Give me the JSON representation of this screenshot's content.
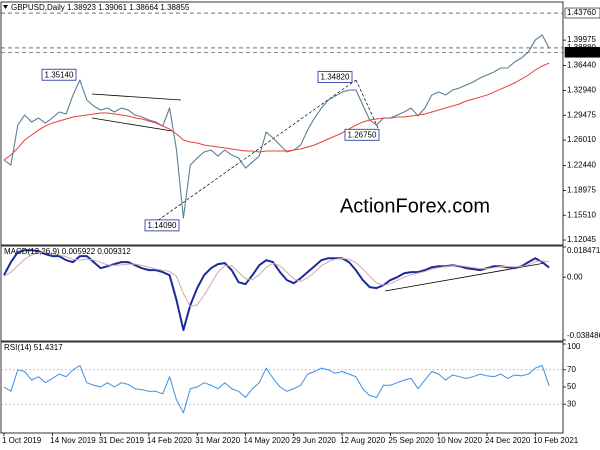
{
  "chart_data": [
    {
      "type": "line",
      "title": "GBPUSD,Daily 1.38923 1.39061 1.38664 1.38855",
      "watermark": "ActionForex.com",
      "series": [
        {
          "color": "#5b7f95",
          "values": [
            1.2322,
            1.2252,
            1.2811,
            1.2951,
            1.2853,
            1.2909,
            1.2839,
            1.2909,
            1.2993,
            1.2965,
            1.323,
            1.344,
            1.3161,
            1.3077,
            1.3021,
            1.3049,
            1.2993,
            1.3049,
            1.3021,
            1.2951,
            1.2923,
            1.2881,
            1.2853,
            1.2797,
            1.3049,
            1.2462,
            1.1512,
            1.2252,
            1.235,
            1.2434,
            1.2462,
            1.2378,
            1.2462,
            1.2392,
            1.235,
            1.221,
            1.2294,
            1.2378,
            1.2713,
            1.263,
            1.2532,
            1.2434,
            1.2462,
            1.2532,
            1.2741,
            1.2909,
            1.3049,
            1.3161,
            1.3216,
            1.3272,
            1.33,
            1.33,
            1.3091,
            1.2881,
            1.2811,
            1.2909,
            1.2909,
            1.2951,
            1.2993,
            1.3049,
            1.2937,
            1.3049,
            1.323,
            1.3272,
            1.323,
            1.33,
            1.3328,
            1.337,
            1.3412,
            1.3468,
            1.351,
            1.3552,
            1.3608,
            1.3608,
            1.3692,
            1.3748,
            1.3832,
            1.4,
            1.4069,
            1.3886
          ]
        },
        {
          "color": "#e8403a",
          "values": [
            1.2322,
            1.2392,
            1.249,
            1.2602,
            1.2672,
            1.2741,
            1.2797,
            1.2839,
            1.2867,
            1.2895,
            1.2923,
            1.2937,
            1.2951,
            1.2965,
            1.2979,
            1.2979,
            1.2965,
            1.2951,
            1.2937,
            1.2909,
            1.2895,
            1.2867,
            1.2839,
            1.2797,
            1.2755,
            1.2686,
            1.2602,
            1.2574,
            1.256,
            1.2532,
            1.2518,
            1.2504,
            1.249,
            1.2476,
            1.2462,
            1.2448,
            1.2448,
            1.2434,
            1.2448,
            1.2448,
            1.2448,
            1.2448,
            1.2462,
            1.2476,
            1.2504,
            1.2532,
            1.2574,
            1.2616,
            1.2658,
            1.27,
            1.2755,
            1.2811,
            1.2853,
            1.2881,
            1.2895,
            1.2909,
            1.2909,
            1.2923,
            1.2923,
            1.2937,
            1.2951,
            1.2965,
            1.2993,
            1.3021,
            1.3049,
            1.3077,
            1.3105,
            1.3147,
            1.3175,
            1.3202,
            1.323,
            1.3272,
            1.3314,
            1.3356,
            1.3398,
            1.3454,
            1.351,
            1.358,
            1.3636,
            1.3678
          ]
        }
      ],
      "ylim": [
        1.1149,
        1.4516
      ],
      "yticks": [
        1.39975,
        {
          "value": 1.3644,
          "label": "1.36440"
        },
        {
          "value": 1.3294,
          "label": "1.32940"
        },
        1.29475,
        {
          "value": 1.2601,
          "label": "1.26010"
        },
        {
          "value": 1.2244,
          "label": "1.22440"
        },
        1.18975,
        {
          "value": 1.1551,
          "label": "1.15510"
        },
        1.12045
      ],
      "levels": [
        {
          "value": 1.4376,
          "label": "1.43760"
        },
        {
          "value": 1.3888,
          "label": "1.38880"
        },
        {
          "value": 1.3828,
          "label": "1.38280"
        }
      ],
      "annotations": [
        {
          "value": 1.3514,
          "label": "1.35140"
        },
        {
          "value": 1.1409,
          "label": "1.14090"
        },
        {
          "value": 1.3482,
          "label": "1.34820"
        },
        {
          "value": 1.2675,
          "label": "1.26750"
        }
      ]
    },
    {
      "type": "line",
      "title": "MACD(12,26,9) 0.005922 0.009312",
      "series": [
        {
          "color": "#1a2a9c",
          "values": [
            0.0012,
            0.0092,
            0.0153,
            0.0165,
            0.0165,
            0.0159,
            0.0141,
            0.0129,
            0.0129,
            0.0104,
            0.0092,
            0.0129,
            0.0129,
            0.0092,
            0.0055,
            0.0067,
            0.008,
            0.0092,
            0.0092,
            0.0073,
            0.0055,
            0.0043,
            0.0043,
            0.0031,
            0.0012,
            -0.0141,
            -0.0324,
            -0.0171,
            -0.0067,
            0.0012,
            0.0055,
            0.008,
            0.0086,
            0.0043,
            -0.0031,
            -0.0043,
            0.0012,
            0.0073,
            0.0104,
            0.0092,
            0.0031,
            -0.0018,
            -0.0037,
            -0.0006,
            0.0031,
            0.0067,
            0.0104,
            0.0116,
            0.0116,
            0.0116,
            0.0092,
            0.0043,
            -0.0018,
            -0.0061,
            -0.0067,
            -0.0049,
            -0.0018,
            0,
            0.0024,
            0.0031,
            0.0031,
            0.0043,
            0.0061,
            0.0067,
            0.0067,
            0.0073,
            0.0067,
            0.0055,
            0.0049,
            0.0043,
            0.0055,
            0.0067,
            0.0067,
            0.0061,
            0.0055,
            0.0067,
            0.0092,
            0.0116,
            0.0092,
            0.0059
          ]
        },
        {
          "color": "#d4a8a8",
          "values": [
            0.0005,
            0.003,
            0.007,
            0.011,
            0.0135,
            0.015,
            0.015,
            0.0145,
            0.0135,
            0.0125,
            0.011,
            0.0105,
            0.011,
            0.0105,
            0.009,
            0.0075,
            0.0072,
            0.0075,
            0.008,
            0.008,
            0.0072,
            0.006,
            0.005,
            0.0042,
            0.0035,
            0.0005,
            -0.01,
            -0.018,
            -0.017,
            -0.011,
            -0.004,
            0.003,
            0.007,
            0.007,
            0.003,
            -0.001,
            -0.0015,
            0.0015,
            0.006,
            0.0085,
            0.007,
            0.003,
            -0.001,
            -0.0025,
            -0.0005,
            0.003,
            0.007,
            0.0095,
            0.011,
            0.0115,
            0.011,
            0.009,
            0.005,
            0.0005,
            -0.0035,
            -0.005,
            -0.004,
            -0.002,
            0.0,
            0.0015,
            0.0025,
            0.0035,
            0.005,
            0.0058,
            0.0065,
            0.007,
            0.007,
            0.0065,
            0.0058,
            0.0052,
            0.0052,
            0.0058,
            0.0065,
            0.0065,
            0.0063,
            0.0065,
            0.0075,
            0.0095,
            0.01,
            0.0093
          ]
        }
      ],
      "ylim": [
        -0.038486,
        0.018471
      ],
      "yticks": [
        0.018471,
        {
          "value": 0,
          "label": "0.00"
        },
        -0.038486
      ]
    },
    {
      "type": "line",
      "title": "RSI(14) 51.4317",
      "series": [
        {
          "color": "#3c8fe6",
          "values": [
            50,
            45,
            70,
            68,
            58,
            62,
            55,
            60,
            65,
            62,
            70,
            75,
            55,
            52,
            50,
            55,
            50,
            55,
            53,
            48,
            47,
            45,
            45,
            42,
            62,
            35,
            20,
            48,
            50,
            55,
            52,
            48,
            55,
            48,
            45,
            38,
            48,
            55,
            72,
            60,
            50,
            45,
            48,
            52,
            65,
            68,
            72,
            70,
            66,
            68,
            65,
            62,
            48,
            40,
            38,
            52,
            52,
            55,
            58,
            60,
            48,
            58,
            68,
            65,
            58,
            64,
            62,
            60,
            62,
            65,
            63,
            62,
            65,
            60,
            64,
            63,
            65,
            72,
            75,
            51.4317
          ]
        }
      ],
      "ylim": [
        0,
        100
      ],
      "yticks": [
        100,
        70,
        50,
        30
      ],
      "levels": [
        70,
        30
      ],
      "categories": [
        "1 Oct 2019",
        null,
        null,
        null,
        null,
        null,
        null,
        "14 Nov 2019",
        null,
        null,
        null,
        null,
        null,
        null,
        "31 Dec 2019",
        null,
        null,
        null,
        null,
        null,
        null,
        "14 Feb 2020",
        null,
        null,
        null,
        null,
        null,
        null,
        "31 Mar 2020",
        null,
        null,
        null,
        null,
        null,
        null,
        "14 May 2020",
        null,
        null,
        null,
        null,
        null,
        null,
        "29 Jun 2020",
        null,
        null,
        null,
        null,
        null,
        null,
        "12 Aug 2020",
        null,
        null,
        null,
        null,
        null,
        null,
        "25 Sep 2020",
        null,
        null,
        null,
        null,
        null,
        null,
        "10 Nov 2020",
        null,
        null,
        null,
        null,
        null,
        null,
        "24 Dec 2020",
        null,
        null,
        null,
        null,
        null,
        null,
        "10 Feb 2021",
        null,
        null
      ]
    }
  ]
}
